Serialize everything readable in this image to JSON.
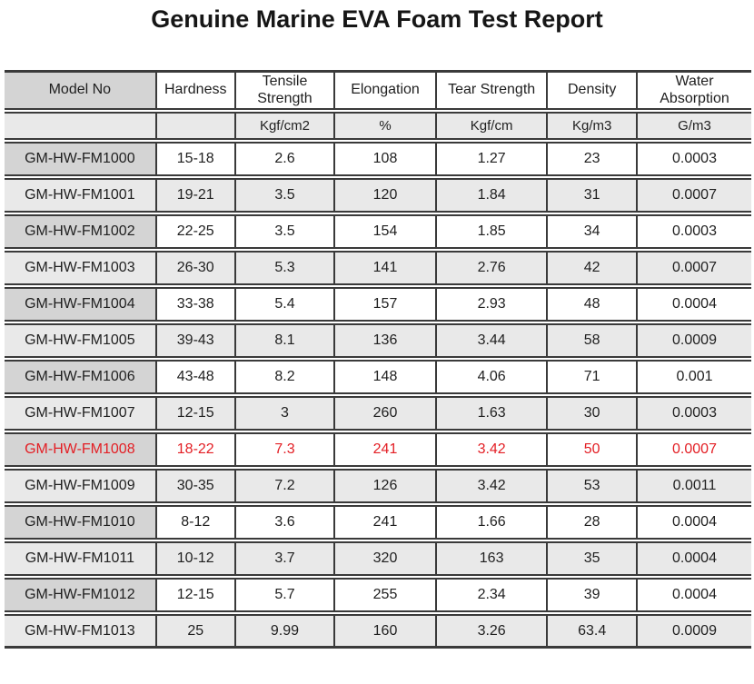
{
  "title": "Genuine Marine EVA Foam Test Report",
  "table": {
    "columns": [
      {
        "label": "Model No",
        "unit": ""
      },
      {
        "label": "Hardness",
        "unit": ""
      },
      {
        "label": "Tensile Strength",
        "unit": "Kgf/cm2"
      },
      {
        "label": "Elongation",
        "unit": "%"
      },
      {
        "label": "Tear Strength",
        "unit": "Kgf/cm"
      },
      {
        "label": "Density",
        "unit": "Kg/m3"
      },
      {
        "label": "Water Absorption",
        "unit": "G/m3"
      }
    ],
    "rows": [
      {
        "model": "GM-HW-FM1000",
        "hardness": "15-18",
        "tensile": "2.6",
        "elongation": "108",
        "tear": "1.27",
        "density": "23",
        "water": "0.0003",
        "highlight": false
      },
      {
        "model": "GM-HW-FM1001",
        "hardness": "19-21",
        "tensile": "3.5",
        "elongation": "120",
        "tear": "1.84",
        "density": "31",
        "water": "0.0007",
        "highlight": false
      },
      {
        "model": "GM-HW-FM1002",
        "hardness": "22-25",
        "tensile": "3.5",
        "elongation": "154",
        "tear": "1.85",
        "density": "34",
        "water": "0.0003",
        "highlight": false
      },
      {
        "model": "GM-HW-FM1003",
        "hardness": "26-30",
        "tensile": "5.3",
        "elongation": "141",
        "tear": "2.76",
        "density": "42",
        "water": "0.0007",
        "highlight": false
      },
      {
        "model": "GM-HW-FM1004",
        "hardness": "33-38",
        "tensile": "5.4",
        "elongation": "157",
        "tear": "2.93",
        "density": "48",
        "water": "0.0004",
        "highlight": false
      },
      {
        "model": "GM-HW-FM1005",
        "hardness": "39-43",
        "tensile": "8.1",
        "elongation": "136",
        "tear": "3.44",
        "density": "58",
        "water": "0.0009",
        "highlight": false
      },
      {
        "model": "GM-HW-FM1006",
        "hardness": "43-48",
        "tensile": "8.2",
        "elongation": "148",
        "tear": "4.06",
        "density": "71",
        "water": "0.001",
        "highlight": false
      },
      {
        "model": "GM-HW-FM1007",
        "hardness": "12-15",
        "tensile": "3",
        "elongation": "260",
        "tear": "1.63",
        "density": "30",
        "water": "0.0003",
        "highlight": false
      },
      {
        "model": "GM-HW-FM1008",
        "hardness": "18-22",
        "tensile": "7.3",
        "elongation": "241",
        "tear": "3.42",
        "density": "50",
        "water": "0.0007",
        "highlight": true
      },
      {
        "model": "GM-HW-FM1009",
        "hardness": "30-35",
        "tensile": "7.2",
        "elongation": "126",
        "tear": "3.42",
        "density": "53",
        "water": "0.0011",
        "highlight": false
      },
      {
        "model": "GM-HW-FM1010",
        "hardness": "8-12",
        "tensile": "3.6",
        "elongation": "241",
        "tear": "1.66",
        "density": "28",
        "water": "0.0004",
        "highlight": false
      },
      {
        "model": "GM-HW-FM1011",
        "hardness": "10-12",
        "tensile": "3.7",
        "elongation": "320",
        "tear": "163",
        "density": "35",
        "water": "0.0004",
        "highlight": false
      },
      {
        "model": "GM-HW-FM1012",
        "hardness": "12-15",
        "tensile": "5.7",
        "elongation": "255",
        "tear": "2.34",
        "density": "39",
        "water": "0.0004",
        "highlight": false
      },
      {
        "model": "GM-HW-FM1013",
        "hardness": "25",
        "tensile": "9.99",
        "elongation": "160",
        "tear": "3.26",
        "density": "63.4",
        "water": "0.0009",
        "highlight": false
      }
    ]
  },
  "colors": {
    "highlight_text": "#e31e24",
    "model_cell_bg": "#d4d4d4",
    "row_alt_bg": "#e9e9e9",
    "border": "#3a3a3a"
  }
}
